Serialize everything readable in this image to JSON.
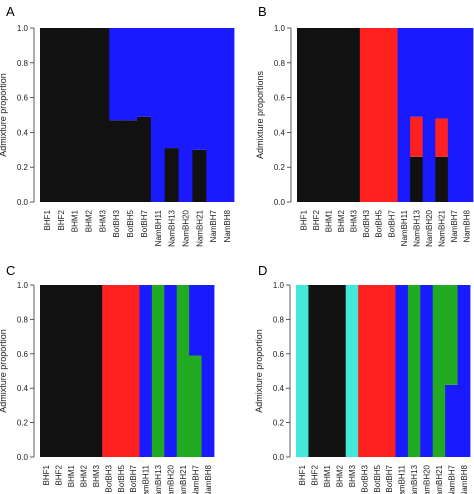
{
  "chart_data": [
    {
      "panel": "A",
      "type": "bar",
      "stacked": true,
      "ylabel": "Admixture proportion",
      "ylim": [
        0,
        1
      ],
      "yticks": [
        "0.0",
        "0.2",
        "0.4",
        "0.6",
        "0.8",
        "1.0"
      ],
      "categories": [
        "BHF1",
        "BHF2",
        "BHM1",
        "BHM2",
        "BHM3",
        "BotBH3",
        "BotBH5",
        "BotBH7",
        "NamBH11",
        "NamBH13",
        "NamBH20",
        "NamBH21",
        "NamBH7",
        "NamBH8"
      ],
      "colors": [
        "#111111",
        "#1a1aff",
        "#ff2020",
        "#22aa22",
        "#44e8d8"
      ],
      "values": [
        [
          1.0,
          0.0
        ],
        [
          1.0,
          0.0
        ],
        [
          1.0,
          0.0
        ],
        [
          1.0,
          0.0
        ],
        [
          1.0,
          0.0
        ],
        [
          0.47,
          0.53
        ],
        [
          0.47,
          0.53
        ],
        [
          0.49,
          0.51
        ],
        [
          0.0,
          1.0
        ],
        [
          0.31,
          0.69
        ],
        [
          0.0,
          1.0
        ],
        [
          0.3,
          0.7
        ],
        [
          0.0,
          1.0
        ],
        [
          0.0,
          1.0
        ]
      ]
    },
    {
      "panel": "B",
      "type": "bar",
      "stacked": true,
      "ylabel": "Admixture proportions",
      "ylim": [
        0,
        1
      ],
      "yticks": [
        "0.0",
        "0.2",
        "0.4",
        "0.6",
        "0.8",
        "1.0"
      ],
      "categories": [
        "BHF1",
        "BHF2",
        "BHM1",
        "BHM2",
        "BHM3",
        "BotBH3",
        "BotBH5",
        "BotBH7",
        "NamBH11",
        "NamBH13",
        "NamBH20",
        "NamBH21",
        "NamBH7",
        "NamBH8"
      ],
      "colors": [
        "#111111",
        "#ff2020",
        "#1a1aff"
      ],
      "values": [
        [
          1.0,
          0.0,
          0.0
        ],
        [
          1.0,
          0.0,
          0.0
        ],
        [
          1.0,
          0.0,
          0.0
        ],
        [
          1.0,
          0.0,
          0.0
        ],
        [
          1.0,
          0.0,
          0.0
        ],
        [
          0.0,
          1.0,
          0.0
        ],
        [
          0.0,
          1.0,
          0.0
        ],
        [
          0.0,
          1.0,
          0.0
        ],
        [
          0.0,
          0.0,
          1.0
        ],
        [
          0.26,
          0.23,
          0.51
        ],
        [
          0.0,
          0.0,
          1.0
        ],
        [
          0.26,
          0.22,
          0.52
        ],
        [
          0.0,
          0.0,
          1.0
        ],
        [
          0.0,
          0.0,
          1.0
        ]
      ]
    },
    {
      "panel": "C",
      "type": "bar",
      "stacked": true,
      "ylabel": "Admixture proportion",
      "ylim": [
        0,
        1
      ],
      "yticks": [
        "0.0",
        "0.2",
        "0.4",
        "0.6",
        "0.8",
        "1.0"
      ],
      "categories": [
        "BHF1",
        "BHF2",
        "BHM1",
        "BHM2",
        "BHM3",
        "BotBH3",
        "BotBH5",
        "BotBH7",
        "NamBH11",
        "NamBH13",
        "NamBH20",
        "NamBH21",
        "NamBH7",
        "NamBH8"
      ],
      "colors": [
        "#111111",
        "#ff2020",
        "#22aa22",
        "#1a1aff"
      ],
      "values": [
        [
          1.0,
          0.0,
          0.0,
          0.0
        ],
        [
          1.0,
          0.0,
          0.0,
          0.0
        ],
        [
          1.0,
          0.0,
          0.0,
          0.0
        ],
        [
          1.0,
          0.0,
          0.0,
          0.0
        ],
        [
          1.0,
          0.0,
          0.0,
          0.0
        ],
        [
          0.0,
          1.0,
          0.0,
          0.0
        ],
        [
          0.0,
          1.0,
          0.0,
          0.0
        ],
        [
          0.0,
          1.0,
          0.0,
          0.0
        ],
        [
          0.0,
          0.0,
          0.0,
          1.0
        ],
        [
          0.0,
          0.0,
          1.0,
          0.0
        ],
        [
          0.0,
          0.0,
          0.0,
          1.0
        ],
        [
          0.0,
          0.0,
          1.0,
          0.0
        ],
        [
          0.0,
          0.0,
          0.59,
          0.41
        ],
        [
          0.0,
          0.0,
          0.0,
          1.0
        ]
      ]
    },
    {
      "panel": "D",
      "type": "bar",
      "stacked": true,
      "ylabel": "Admixture proportion",
      "ylim": [
        0,
        1
      ],
      "yticks": [
        "0.0",
        "0.2",
        "0.4",
        "0.6",
        "0.8",
        "1.0"
      ],
      "categories": [
        "BHF1",
        "BHF2",
        "BHM1",
        "BHM2",
        "BHM3",
        "BotBH3",
        "BotBH5",
        "BotBH7",
        "NamBH11",
        "NamBH13",
        "NamBH20",
        "NamBH21",
        "NamBH7",
        "NamBH8"
      ],
      "colors": [
        "#44e8d8",
        "#111111",
        "#ff2020",
        "#1a1aff",
        "#22aa22"
      ],
      "values": [
        [
          1.0,
          0.0,
          0.0,
          0.0,
          0.0
        ],
        [
          0.0,
          1.0,
          0.0,
          0.0,
          0.0
        ],
        [
          0.0,
          1.0,
          0.0,
          0.0,
          0.0
        ],
        [
          0.0,
          1.0,
          0.0,
          0.0,
          0.0
        ],
        [
          1.0,
          0.0,
          0.0,
          0.0,
          0.0
        ],
        [
          0.0,
          0.0,
          1.0,
          0.0,
          0.0
        ],
        [
          0.0,
          0.0,
          1.0,
          0.0,
          0.0
        ],
        [
          0.0,
          0.0,
          1.0,
          0.0,
          0.0
        ],
        [
          0.0,
          0.0,
          0.0,
          1.0,
          0.0
        ],
        [
          0.0,
          0.0,
          0.0,
          0.0,
          1.0
        ],
        [
          0.0,
          0.0,
          0.0,
          1.0,
          0.0
        ],
        [
          0.0,
          0.0,
          0.0,
          0.0,
          1.0
        ],
        [
          0.0,
          0.0,
          0.0,
          0.42,
          0.58
        ],
        [
          0.0,
          0.0,
          0.0,
          1.0,
          0.0
        ]
      ]
    }
  ]
}
